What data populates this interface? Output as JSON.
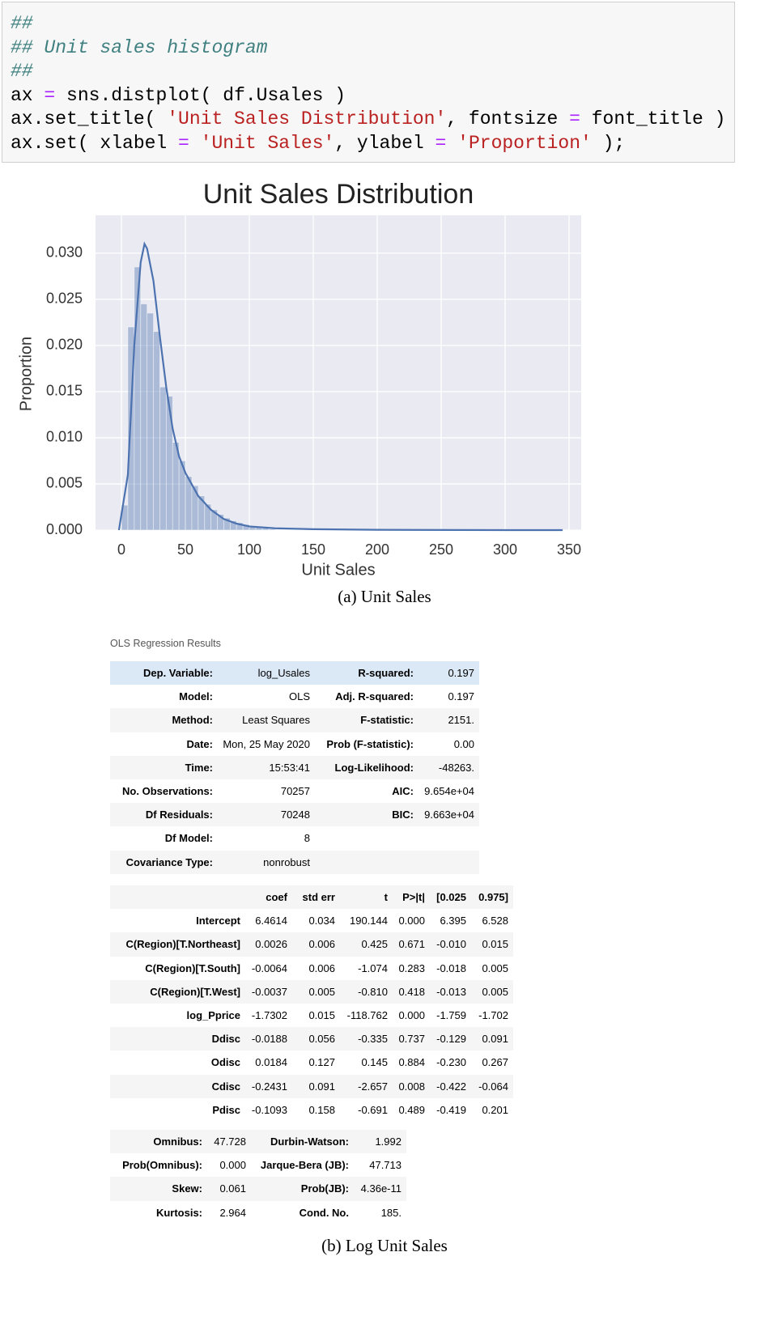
{
  "code": {
    "lines": [
      [
        {
          "text": "##",
          "color": "#408080"
        }
      ],
      [
        {
          "text": "## Unit sales histogram",
          "color": "#408080"
        }
      ],
      [
        {
          "text": "##",
          "color": "#408080"
        }
      ],
      [
        {
          "text": "ax ",
          "color": "#000000"
        },
        {
          "text": "=",
          "color": "#aa22ff"
        },
        {
          "text": " sns.distplot( df.Usales )",
          "color": "#000000"
        }
      ],
      [
        {
          "text": "ax.set_title( ",
          "color": "#000000"
        },
        {
          "text": "'Unit Sales Distribution'",
          "color": "#ba2121"
        },
        {
          "text": ", fontsize ",
          "color": "#000000"
        },
        {
          "text": "=",
          "color": "#aa22ff"
        },
        {
          "text": " font_title )",
          "color": "#000000"
        }
      ],
      [
        {
          "text": "ax.set( xlabel ",
          "color": "#000000"
        },
        {
          "text": "=",
          "color": "#aa22ff"
        },
        {
          "text": " ",
          "color": "#000000"
        },
        {
          "text": "'Unit Sales'",
          "color": "#ba2121"
        },
        {
          "text": ", ylabel ",
          "color": "#000000"
        },
        {
          "text": "=",
          "color": "#aa22ff"
        },
        {
          "text": " ",
          "color": "#000000"
        },
        {
          "text": "'Proportion'",
          "color": "#ba2121"
        },
        {
          "text": " );",
          "color": "#000000"
        }
      ]
    ]
  },
  "chart_data": {
    "type": "histogram",
    "title": "Unit Sales Distribution",
    "xlabel": "Unit Sales",
    "ylabel": "Proportion",
    "bins": [
      0,
      5,
      10,
      15,
      20,
      25,
      30,
      35,
      40,
      45,
      50,
      55,
      60,
      65,
      70,
      75,
      80,
      85,
      90,
      95,
      100,
      105,
      110,
      115,
      120
    ],
    "values": [
      0.0027,
      0.022,
      0.0285,
      0.0245,
      0.0235,
      0.0215,
      0.0155,
      0.0145,
      0.0095,
      0.0075,
      0.0058,
      0.0048,
      0.0037,
      0.0028,
      0.0022,
      0.0017,
      0.0013,
      0.001,
      0.0008,
      0.0006,
      0.0004,
      0.0003,
      0.0002,
      0.0001
    ],
    "color": "#4c72b0",
    "line": {
      "x": [
        -2,
        5,
        10,
        15,
        18,
        20,
        25,
        30,
        35,
        40,
        45,
        50,
        60,
        70,
        80,
        90,
        100,
        120,
        150,
        200,
        300,
        345
      ],
      "values": [
        0,
        0.006,
        0.02,
        0.029,
        0.031,
        0.0305,
        0.027,
        0.021,
        0.0155,
        0.011,
        0.008,
        0.0062,
        0.0037,
        0.0022,
        0.0012,
        0.0007,
        0.0004,
        0.0002,
        0.0001,
        3e-05,
        0,
        0
      ],
      "color": "#4c72b0"
    },
    "xlim": [
      -20.3,
      359.5
    ],
    "xticks": [
      0,
      50,
      100,
      150,
      200,
      250,
      300,
      350
    ],
    "ylim": [
      0,
      0.0341
    ],
    "yticks": [
      {
        "value": 0,
        "label": "0.000"
      },
      0.005,
      {
        "value": 0.01,
        "label": "0.010"
      },
      0.015,
      {
        "value": 0.02,
        "label": "0.020"
      },
      0.025,
      {
        "value": 0.03,
        "label": "0.030"
      }
    ],
    "grid": true,
    "background": "#eaeaf2"
  },
  "caption_a": "(a) Unit Sales",
  "ols": {
    "title": "OLS Regression Results",
    "summary": [
      [
        "Dep. Variable:",
        "log_Usales",
        "R-squared:",
        "0.197"
      ],
      [
        "Model:",
        "OLS",
        "Adj. R-squared:",
        "0.197"
      ],
      [
        "Method:",
        "Least Squares",
        "F-statistic:",
        "2151."
      ],
      [
        "Date:",
        "Mon, 25 May 2020",
        "Prob (F-statistic):",
        "0.00"
      ],
      [
        "Time:",
        "15:53:41",
        "Log-Likelihood:",
        "-48263."
      ],
      [
        "No. Observations:",
        "70257",
        "AIC:",
        "9.654e+04"
      ],
      [
        "Df Residuals:",
        "70248",
        "BIC:",
        "9.663e+04"
      ],
      [
        "Df Model:",
        "8"
      ],
      [
        "Covariance Type:",
        "nonrobust"
      ]
    ],
    "coef_header": [
      "coef",
      "std err",
      "t",
      "P>|t|",
      "[0.025",
      "0.975]"
    ],
    "coef_rows": [
      [
        "Intercept",
        "6.4614",
        "0.034",
        "190.144",
        "0.000",
        "6.395",
        "6.528"
      ],
      [
        "C(Region)[T.Northeast]",
        "0.0026",
        "0.006",
        "0.425",
        "0.671",
        "-0.010",
        "0.015"
      ],
      [
        "C(Region)[T.South]",
        "-0.0064",
        "0.006",
        "-1.074",
        "0.283",
        "-0.018",
        "0.005"
      ],
      [
        "C(Region)[T.West]",
        "-0.0037",
        "0.005",
        "-0.810",
        "0.418",
        "-0.013",
        "0.005"
      ],
      [
        "log_Pprice",
        "-1.7302",
        "0.015",
        "-118.762",
        "0.000",
        "-1.759",
        "-1.702"
      ],
      [
        "Ddisc",
        "-0.0188",
        "0.056",
        "-0.335",
        "0.737",
        "-0.129",
        "0.091"
      ],
      [
        "Odisc",
        "0.0184",
        "0.127",
        "0.145",
        "0.884",
        "-0.230",
        "0.267"
      ],
      [
        "Cdisc",
        "-0.2431",
        "0.091",
        "-2.657",
        "0.008",
        "-0.422",
        "-0.064"
      ],
      [
        "Pdisc",
        "-0.1093",
        "0.158",
        "-0.691",
        "0.489",
        "-0.419",
        "0.201"
      ]
    ],
    "diag": [
      [
        "Omnibus:",
        "47.728",
        "Durbin-Watson:",
        "1.992"
      ],
      [
        "Prob(Omnibus):",
        "0.000",
        "Jarque-Bera (JB):",
        "47.713"
      ],
      [
        "Skew:",
        "0.061",
        "Prob(JB):",
        "4.36e-11"
      ],
      [
        "Kurtosis:",
        "2.964",
        "Cond. No.",
        "185."
      ]
    ]
  },
  "caption_b": "(b) Log Unit Sales"
}
